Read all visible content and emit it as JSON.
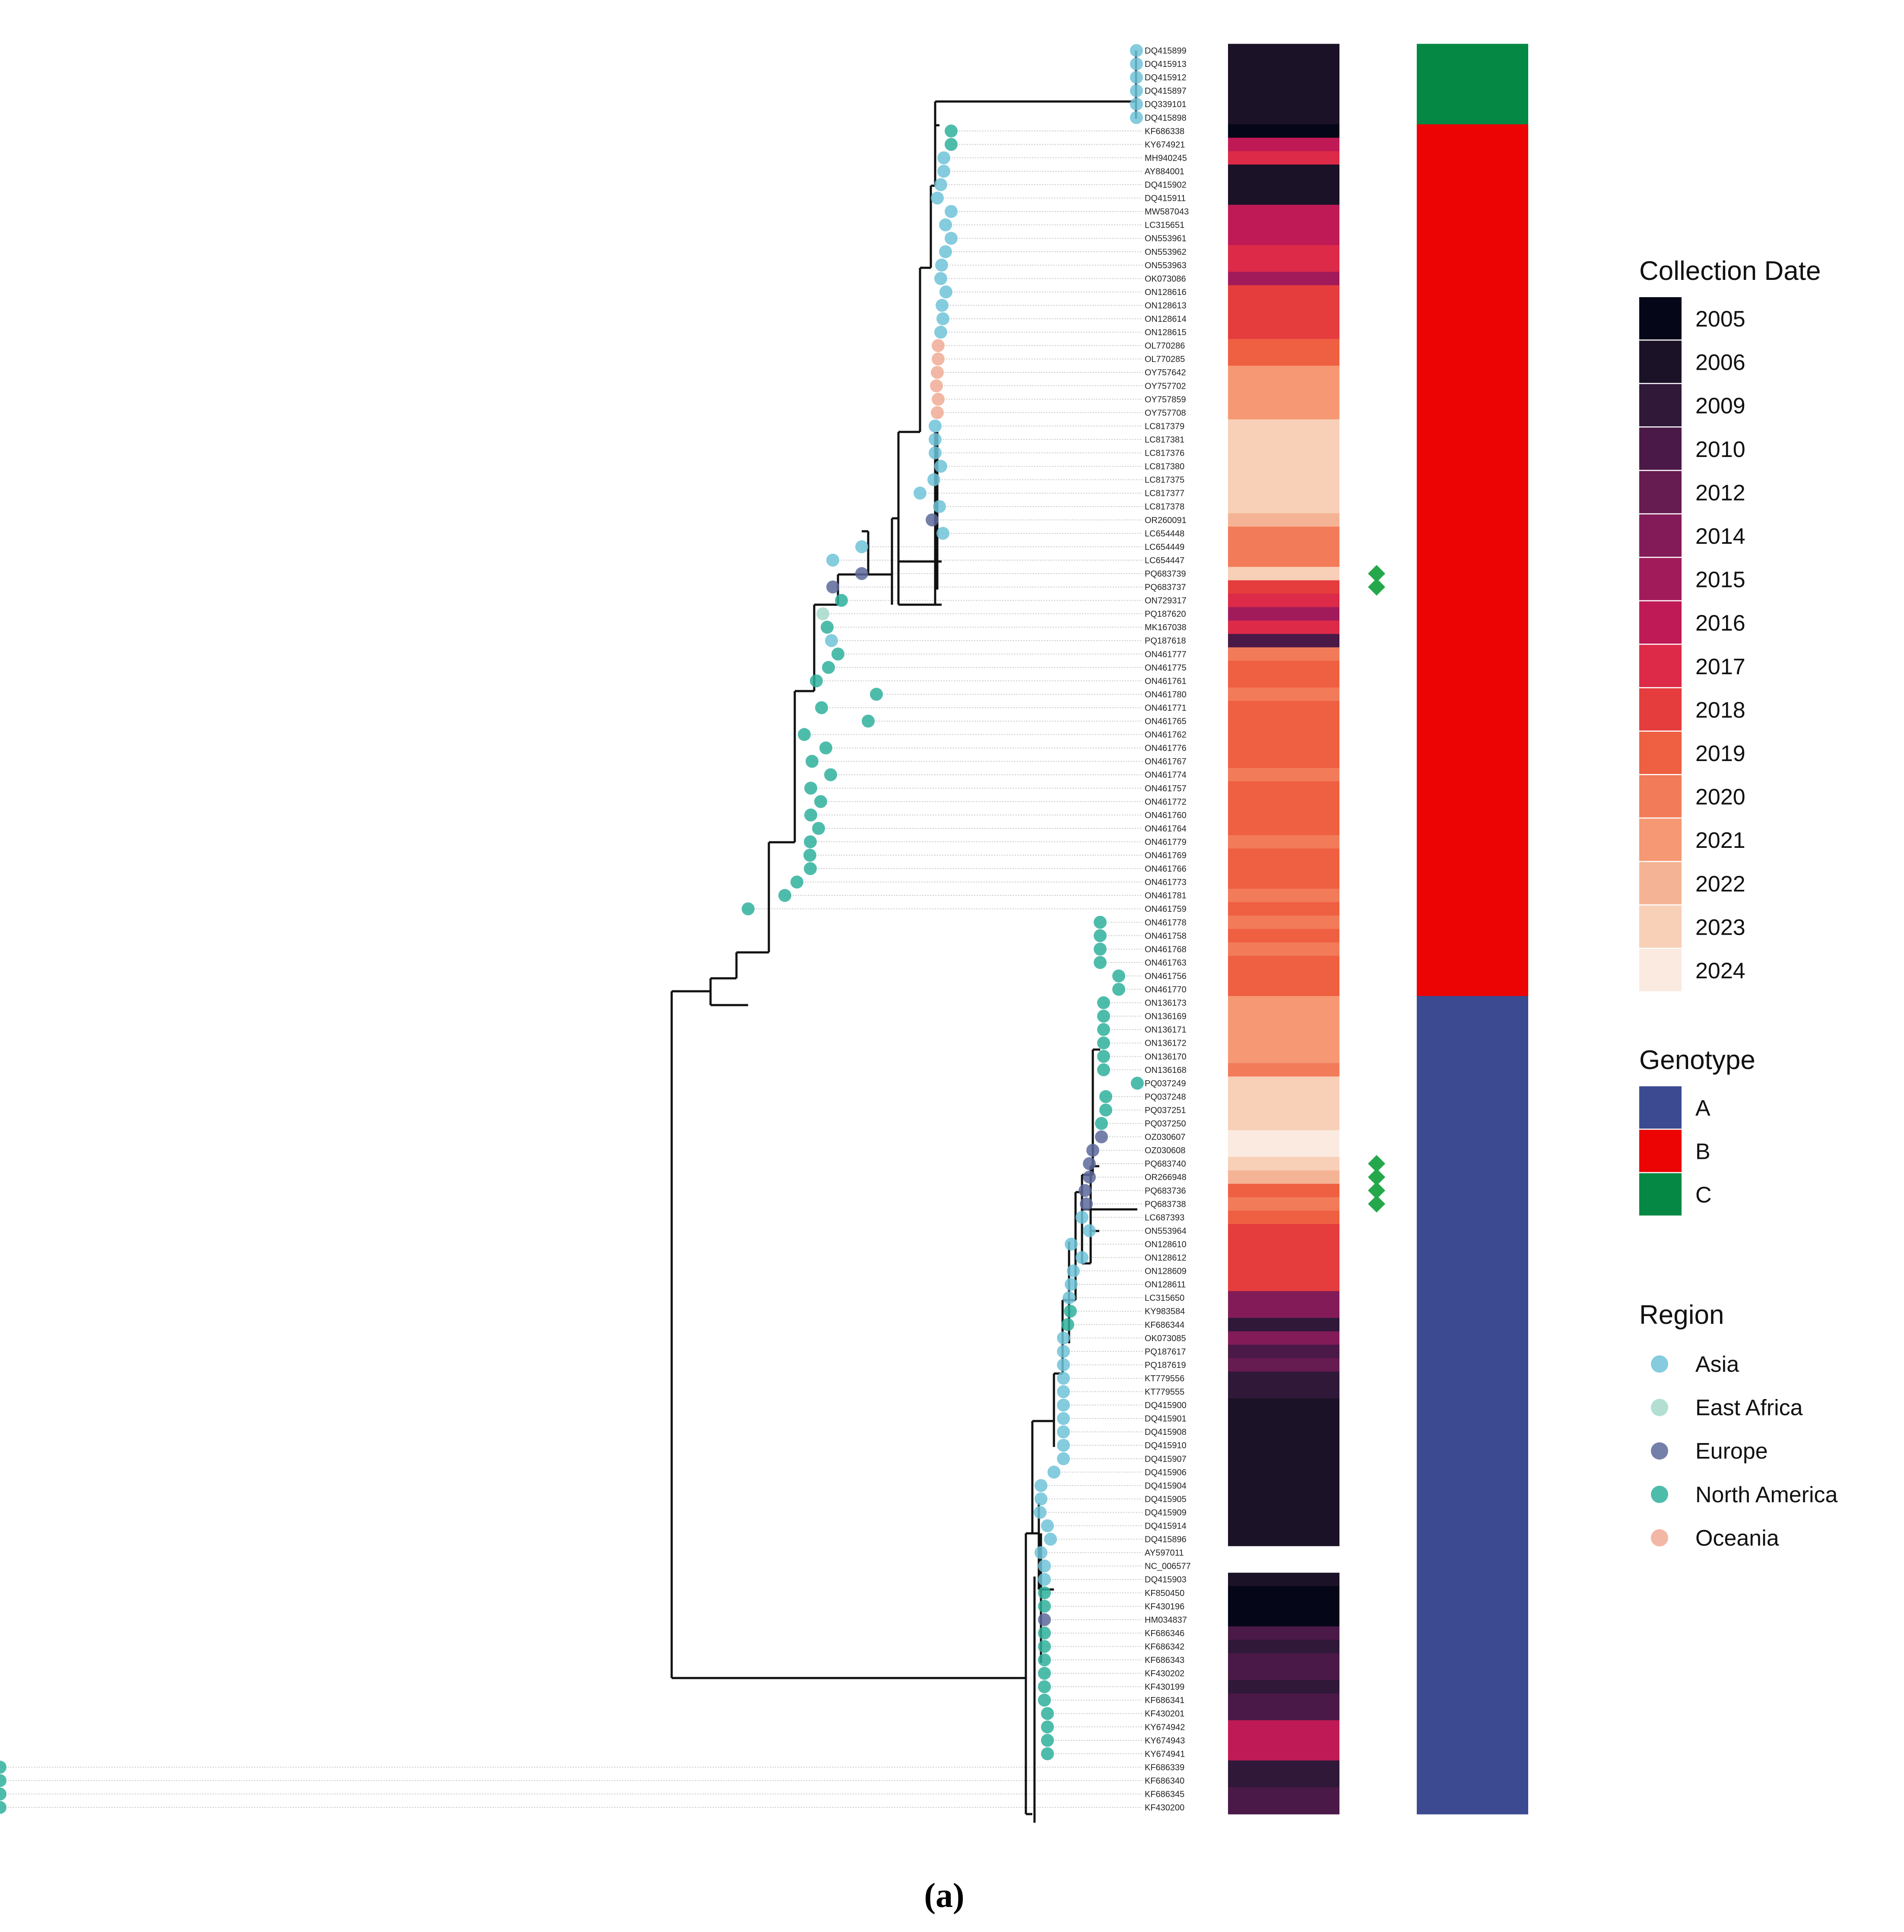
{
  "caption": "(a)",
  "colors": {
    "date": {
      "2005": "#050618",
      "2006": "#1c1227",
      "2009": "#2f1838",
      "2010": "#4a1947",
      "2012": "#661b51",
      "2014": "#831b59",
      "2015": "#a11b5b",
      "2016": "#bf1a55",
      "2017": "#dc2a48",
      "2018": "#e53c3e",
      "2019": "#ef5f42",
      "2020": "#f27b59",
      "2021": "#f59873",
      "2022": "#f5b395",
      "2023": "#f8cfb7",
      "2024": "#faeadf"
    },
    "genotype": {
      "A": "#3c4a91",
      "B": "#ec0404",
      "C": "#048844"
    },
    "region": {
      "Asia": "#6ec3d8",
      "East Africa": "#a6d9cb",
      "Europe": "#5d6a9b",
      "North America": "#2fb09c",
      "Oceania": "#f0ac95"
    }
  },
  "legends": {
    "collection_date": {
      "title": "Collection Date",
      "items": [
        "2005",
        "2006",
        "2009",
        "2010",
        "2012",
        "2014",
        "2015",
        "2016",
        "2017",
        "2018",
        "2019",
        "2020",
        "2021",
        "2022",
        "2023",
        "2024"
      ]
    },
    "genotype": {
      "title": "Genotype",
      "items": [
        "A",
        "B",
        "C"
      ]
    },
    "region": {
      "title": "Region",
      "items": [
        "Asia",
        "East Africa",
        "Europe",
        "North America",
        "Oceania"
      ]
    }
  },
  "tips": [
    {
      "id": "DQ415899",
      "region": "Asia",
      "date": "2006",
      "genotype": "C"
    },
    {
      "id": "DQ415913",
      "region": "Asia",
      "date": "2006",
      "genotype": "C"
    },
    {
      "id": "DQ415912",
      "region": "Asia",
      "date": "2006",
      "genotype": "C"
    },
    {
      "id": "DQ415897",
      "region": "Asia",
      "date": "2006",
      "genotype": "C"
    },
    {
      "id": "DQ339101",
      "region": "Asia",
      "date": "2006",
      "genotype": "C"
    },
    {
      "id": "DQ415898",
      "region": "Asia",
      "date": "2006",
      "genotype": "C"
    },
    {
      "id": "KF686338",
      "region": "North America",
      "date": "2005",
      "genotype": "B"
    },
    {
      "id": "KY674921",
      "region": "North America",
      "date": "2016",
      "genotype": "B"
    },
    {
      "id": "MH940245",
      "region": "Asia",
      "date": "2017",
      "genotype": "B"
    },
    {
      "id": "AY884001",
      "region": "Asia",
      "date": "2006",
      "genotype": "B"
    },
    {
      "id": "DQ415902",
      "region": "Asia",
      "date": "2006",
      "genotype": "B"
    },
    {
      "id": "DQ415911",
      "region": "Asia",
      "date": "2006",
      "genotype": "B"
    },
    {
      "id": "MW587043",
      "region": "Asia",
      "date": "2016",
      "genotype": "B"
    },
    {
      "id": "LC315651",
      "region": "Asia",
      "date": "2016",
      "genotype": "B"
    },
    {
      "id": "ON553961",
      "region": "Asia",
      "date": "2016",
      "genotype": "B"
    },
    {
      "id": "ON553962",
      "region": "Asia",
      "date": "2017",
      "genotype": "B"
    },
    {
      "id": "ON553963",
      "region": "Asia",
      "date": "2017",
      "genotype": "B"
    },
    {
      "id": "OK073086",
      "region": "Asia",
      "date": "2015",
      "genotype": "B"
    },
    {
      "id": "ON128616",
      "region": "Asia",
      "date": "2018",
      "genotype": "B"
    },
    {
      "id": "ON128613",
      "region": "Asia",
      "date": "2018",
      "genotype": "B"
    },
    {
      "id": "ON128614",
      "region": "Asia",
      "date": "2018",
      "genotype": "B"
    },
    {
      "id": "ON128615",
      "region": "Asia",
      "date": "2018",
      "genotype": "B"
    },
    {
      "id": "OL770286",
      "region": "Oceania",
      "date": "2019",
      "genotype": "B"
    },
    {
      "id": "OL770285",
      "region": "Oceania",
      "date": "2019",
      "genotype": "B"
    },
    {
      "id": "OY757642",
      "region": "Oceania",
      "date": "2021",
      "genotype": "B"
    },
    {
      "id": "OY757702",
      "region": "Oceania",
      "date": "2021",
      "genotype": "B"
    },
    {
      "id": "OY757859",
      "region": "Oceania",
      "date": "2021",
      "genotype": "B"
    },
    {
      "id": "OY757708",
      "region": "Oceania",
      "date": "2021",
      "genotype": "B"
    },
    {
      "id": "LC817379",
      "region": "Asia",
      "date": "2023",
      "genotype": "B"
    },
    {
      "id": "LC817381",
      "region": "Asia",
      "date": "2023",
      "genotype": "B"
    },
    {
      "id": "LC817376",
      "region": "Asia",
      "date": "2023",
      "genotype": "B"
    },
    {
      "id": "LC817380",
      "region": "Asia",
      "date": "2023",
      "genotype": "B"
    },
    {
      "id": "LC817375",
      "region": "Asia",
      "date": "2023",
      "genotype": "B"
    },
    {
      "id": "LC817377",
      "region": "Asia",
      "date": "2023",
      "genotype": "B"
    },
    {
      "id": "LC817378",
      "region": "Asia",
      "date": "2023",
      "genotype": "B"
    },
    {
      "id": "OR260091",
      "region": "Europe",
      "date": "2022",
      "genotype": "B"
    },
    {
      "id": "LC654448",
      "region": "Asia",
      "date": "2020",
      "genotype": "B"
    },
    {
      "id": "LC654449",
      "region": "Asia",
      "date": "2020",
      "genotype": "B"
    },
    {
      "id": "LC654447",
      "region": "Asia",
      "date": "2020",
      "genotype": "B"
    },
    {
      "id": "PQ683739",
      "region": "Europe",
      "date": "2023",
      "genotype": "B",
      "marker": true
    },
    {
      "id": "PQ683737",
      "region": "Europe",
      "date": "2018",
      "genotype": "B",
      "marker": true
    },
    {
      "id": "ON729317",
      "region": "North America",
      "date": "2017",
      "genotype": "B"
    },
    {
      "id": "PQ187620",
      "region": "East Africa",
      "date": "2015",
      "genotype": "B"
    },
    {
      "id": "MK167038",
      "region": "North America",
      "date": "2017",
      "genotype": "B"
    },
    {
      "id": "PQ187618",
      "region": "Asia",
      "date": "2010",
      "genotype": "B"
    },
    {
      "id": "ON461777",
      "region": "North America",
      "date": "2020",
      "genotype": "B"
    },
    {
      "id": "ON461775",
      "region": "North America",
      "date": "2019",
      "genotype": "B"
    },
    {
      "id": "ON461761",
      "region": "North America",
      "date": "2019",
      "genotype": "B"
    },
    {
      "id": "ON461780",
      "region": "North America",
      "date": "2020",
      "genotype": "B"
    },
    {
      "id": "ON461771",
      "region": "North America",
      "date": "2019",
      "genotype": "B"
    },
    {
      "id": "ON461765",
      "region": "North America",
      "date": "2019",
      "genotype": "B"
    },
    {
      "id": "ON461762",
      "region": "North America",
      "date": "2019",
      "genotype": "B"
    },
    {
      "id": "ON461776",
      "region": "North America",
      "date": "2019",
      "genotype": "B"
    },
    {
      "id": "ON461767",
      "region": "North America",
      "date": "2019",
      "genotype": "B"
    },
    {
      "id": "ON461774",
      "region": "North America",
      "date": "2020",
      "genotype": "B"
    },
    {
      "id": "ON461757",
      "region": "North America",
      "date": "2019",
      "genotype": "B"
    },
    {
      "id": "ON461772",
      "region": "North America",
      "date": "2019",
      "genotype": "B"
    },
    {
      "id": "ON461760",
      "region": "North America",
      "date": "2019",
      "genotype": "B"
    },
    {
      "id": "ON461764",
      "region": "North America",
      "date": "2019",
      "genotype": "B"
    },
    {
      "id": "ON461779",
      "region": "North America",
      "date": "2020",
      "genotype": "B"
    },
    {
      "id": "ON461769",
      "region": "North America",
      "date": "2019",
      "genotype": "B"
    },
    {
      "id": "ON461766",
      "region": "North America",
      "date": "2019",
      "genotype": "B"
    },
    {
      "id": "ON461773",
      "region": "North America",
      "date": "2019",
      "genotype": "B"
    },
    {
      "id": "ON461781",
      "region": "North America",
      "date": "2020",
      "genotype": "B"
    },
    {
      "id": "ON461759",
      "region": "North America",
      "date": "2019",
      "genotype": "B"
    },
    {
      "id": "ON461778",
      "region": "North America",
      "date": "2020",
      "genotype": "B"
    },
    {
      "id": "ON461758",
      "region": "North America",
      "date": "2019",
      "genotype": "B"
    },
    {
      "id": "ON461768",
      "region": "North America",
      "date": "2020",
      "genotype": "B"
    },
    {
      "id": "ON461763",
      "region": "North America",
      "date": "2019",
      "genotype": "B"
    },
    {
      "id": "ON461756",
      "region": "North America",
      "date": "2019",
      "genotype": "B"
    },
    {
      "id": "ON461770",
      "region": "North America",
      "date": "2019",
      "genotype": "B"
    },
    {
      "id": "ON136173",
      "region": "North America",
      "date": "2021",
      "genotype": "A"
    },
    {
      "id": "ON136169",
      "region": "North America",
      "date": "2021",
      "genotype": "A"
    },
    {
      "id": "ON136171",
      "region": "North America",
      "date": "2021",
      "genotype": "A"
    },
    {
      "id": "ON136172",
      "region": "North America",
      "date": "2021",
      "genotype": "A"
    },
    {
      "id": "ON136170",
      "region": "North America",
      "date": "2021",
      "genotype": "A"
    },
    {
      "id": "ON136168",
      "region": "North America",
      "date": "2020",
      "genotype": "A"
    },
    {
      "id": "PQ037249",
      "region": "North America",
      "date": "2023",
      "genotype": "A"
    },
    {
      "id": "PQ037248",
      "region": "North America",
      "date": "2023",
      "genotype": "A"
    },
    {
      "id": "PQ037251",
      "region": "North America",
      "date": "2023",
      "genotype": "A"
    },
    {
      "id": "PQ037250",
      "region": "North America",
      "date": "2023",
      "genotype": "A"
    },
    {
      "id": "OZ030607",
      "region": "Europe",
      "date": "2024",
      "genotype": "A"
    },
    {
      "id": "OZ030608",
      "region": "Europe",
      "date": "2024",
      "genotype": "A"
    },
    {
      "id": "PQ683740",
      "region": "Europe",
      "date": "2023",
      "genotype": "A",
      "marker": true
    },
    {
      "id": "OR266948",
      "region": "Europe",
      "date": "2022",
      "genotype": "A",
      "marker": true
    },
    {
      "id": "PQ683736",
      "region": "Europe",
      "date": "2019",
      "genotype": "A",
      "marker": true
    },
    {
      "id": "PQ683738",
      "region": "Europe",
      "date": "2020",
      "genotype": "A",
      "marker": true
    },
    {
      "id": "LC687393",
      "region": "Asia",
      "date": "2019",
      "genotype": "A"
    },
    {
      "id": "ON553964",
      "region": "Asia",
      "date": "2018",
      "genotype": "A"
    },
    {
      "id": "ON128610",
      "region": "Asia",
      "date": "2018",
      "genotype": "A"
    },
    {
      "id": "ON128612",
      "region": "Asia",
      "date": "2018",
      "genotype": "A"
    },
    {
      "id": "ON128609",
      "region": "Asia",
      "date": "2018",
      "genotype": "A"
    },
    {
      "id": "ON128611",
      "region": "Asia",
      "date": "2018",
      "genotype": "A"
    },
    {
      "id": "LC315650",
      "region": "Asia",
      "date": "2014",
      "genotype": "A"
    },
    {
      "id": "KY983584",
      "region": "North America",
      "date": "2014",
      "genotype": "A"
    },
    {
      "id": "KF686344",
      "region": "North America",
      "date": "2009",
      "genotype": "A"
    },
    {
      "id": "OK073085",
      "region": "Asia",
      "date": "2014",
      "genotype": "A"
    },
    {
      "id": "PQ187617",
      "region": "Asia",
      "date": "2010",
      "genotype": "A"
    },
    {
      "id": "PQ187619",
      "region": "Asia",
      "date": "2012",
      "genotype": "A"
    },
    {
      "id": "KT779556",
      "region": "Asia",
      "date": "2009",
      "genotype": "A"
    },
    {
      "id": "KT779555",
      "region": "Asia",
      "date": "2009",
      "genotype": "A"
    },
    {
      "id": "DQ415900",
      "region": "Asia",
      "date": "2006",
      "genotype": "A"
    },
    {
      "id": "DQ415901",
      "region": "Asia",
      "date": "2006",
      "genotype": "A"
    },
    {
      "id": "DQ415908",
      "region": "Asia",
      "date": "2006",
      "genotype": "A"
    },
    {
      "id": "DQ415910",
      "region": "Asia",
      "date": "2006",
      "genotype": "A"
    },
    {
      "id": "DQ415907",
      "region": "Asia",
      "date": "2006",
      "genotype": "A"
    },
    {
      "id": "DQ415906",
      "region": "Asia",
      "date": "2006",
      "genotype": "A"
    },
    {
      "id": "DQ415904",
      "region": "Asia",
      "date": "2006",
      "genotype": "A"
    },
    {
      "id": "DQ415905",
      "region": "Asia",
      "date": "2006",
      "genotype": "A"
    },
    {
      "id": "DQ415909",
      "region": "Asia",
      "date": "2006",
      "genotype": "A"
    },
    {
      "id": "DQ415914",
      "region": "Asia",
      "date": "2006",
      "genotype": "A"
    },
    {
      "id": "DQ415896",
      "region": "Asia",
      "date": "2006",
      "genotype": "A"
    },
    {
      "id": "AY597011",
      "region": "Asia",
      "date": null,
      "genotype": "A"
    },
    {
      "id": "NC_006577",
      "region": "Asia",
      "date": null,
      "genotype": "A"
    },
    {
      "id": "DQ415903",
      "region": "Asia",
      "date": "2006",
      "genotype": "A"
    },
    {
      "id": "KF850450",
      "region": "North America",
      "date": "2005",
      "genotype": "A"
    },
    {
      "id": "KF430196",
      "region": "North America",
      "date": "2005",
      "genotype": "A"
    },
    {
      "id": "HM034837",
      "region": "Europe",
      "date": "2005",
      "genotype": "A"
    },
    {
      "id": "KF686346",
      "region": "North America",
      "date": "2010",
      "genotype": "A"
    },
    {
      "id": "KF686342",
      "region": "North America",
      "date": "2009",
      "genotype": "A"
    },
    {
      "id": "KF686343",
      "region": "North America",
      "date": "2010",
      "genotype": "A"
    },
    {
      "id": "KF430202",
      "region": "North America",
      "date": "2010",
      "genotype": "A"
    },
    {
      "id": "KF430199",
      "region": "North America",
      "date": "2009",
      "genotype": "A"
    },
    {
      "id": "KF686341",
      "region": "North America",
      "date": "2010",
      "genotype": "A"
    },
    {
      "id": "KF430201",
      "region": "North America",
      "date": "2010",
      "genotype": "A"
    },
    {
      "id": "KY674942",
      "region": "North America",
      "date": "2016",
      "genotype": "A"
    },
    {
      "id": "KY674943",
      "region": "North America",
      "date": "2016",
      "genotype": "A"
    },
    {
      "id": "KY674941",
      "region": "North America",
      "date": "2016",
      "genotype": "A"
    },
    {
      "id": "KF686339",
      "region": "North America",
      "date": "2009",
      "genotype": "A"
    },
    {
      "id": "KF686340",
      "region": "North America",
      "date": "2009",
      "genotype": "A"
    },
    {
      "id": "KF686345",
      "region": "North America",
      "date": "2010",
      "genotype": "A"
    },
    {
      "id": "KF430200",
      "region": "North America",
      "date": "2010",
      "genotype": "A"
    }
  ]
}
